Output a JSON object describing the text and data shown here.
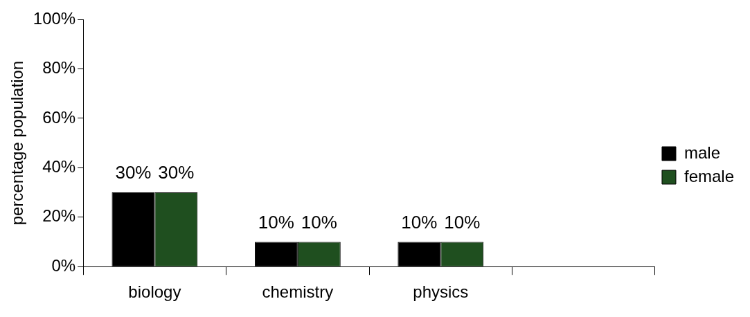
{
  "chart_data": {
    "type": "bar",
    "ylabel": "percentage population",
    "categories": [
      "biology",
      "chemistry",
      "physics",
      null
    ],
    "series": [
      {
        "name": "male",
        "color": "#000000",
        "values": [
          30,
          10,
          10,
          null
        ],
        "value_labels": [
          "30%",
          "10%",
          "10%",
          null
        ]
      },
      {
        "name": "female",
        "color": "#1f4f1f",
        "values": [
          30,
          10,
          10,
          null
        ],
        "value_labels": [
          "30%",
          "10%",
          "10%",
          null
        ]
      }
    ],
    "ylim": [
      0,
      100
    ],
    "yticks": [
      {
        "value": 0,
        "label": "0%"
      },
      {
        "value": 20,
        "label": "20%"
      },
      {
        "value": 40,
        "label": "40%"
      },
      {
        "value": 60,
        "label": "60%"
      },
      {
        "value": 80,
        "label": "80%"
      },
      {
        "value": 100,
        "label": "100%"
      }
    ],
    "grid": false,
    "legend": "right"
  }
}
